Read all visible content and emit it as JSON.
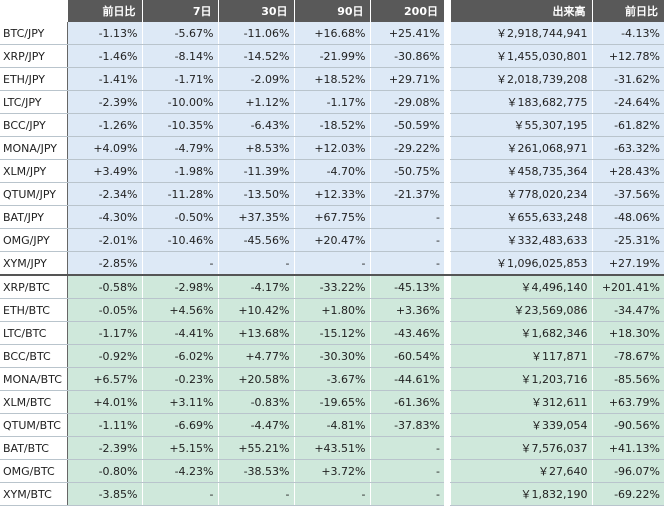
{
  "table": {
    "header": [
      "前日比",
      "7日",
      "30日",
      "90日",
      "200日",
      "出来高",
      "前日比"
    ],
    "rows": [
      [
        "BTC/JPY",
        "-1.13%",
        "-5.67%",
        "-11.06%",
        "+16.68%",
        "+25.41%",
        "￥2,918,744,941",
        "-4.13%"
      ],
      [
        "XRP/JPY",
        "-1.46%",
        "-8.14%",
        "-14.52%",
        "-21.99%",
        "-30.86%",
        "￥1,455,030,801",
        "+12.78%"
      ],
      [
        "ETH/JPY",
        "-1.41%",
        "-1.71%",
        "-2.09%",
        "+18.52%",
        "+29.71%",
        "￥2,018,739,208",
        "-31.62%"
      ],
      [
        "LTC/JPY",
        "-2.39%",
        "-10.00%",
        "+1.12%",
        "-1.17%",
        "-29.08%",
        "￥183,682,775",
        "-24.64%"
      ],
      [
        "BCC/JPY",
        "-1.26%",
        "-10.35%",
        "-6.43%",
        "-18.52%",
        "-50.59%",
        "￥55,307,195",
        "-61.82%"
      ],
      [
        "MONA/JPY",
        "+4.09%",
        "-4.79%",
        "+8.53%",
        "+12.03%",
        "-29.22%",
        "￥261,068,971",
        "-63.32%"
      ],
      [
        "XLM/JPY",
        "+3.49%",
        "-1.98%",
        "-11.39%",
        "-4.70%",
        "-50.75%",
        "￥458,735,364",
        "+28.43%"
      ],
      [
        "QTUM/JPY",
        "-2.34%",
        "-11.28%",
        "-13.50%",
        "+12.33%",
        "-21.37%",
        "￥778,020,234",
        "-37.56%"
      ],
      [
        "BAT/JPY",
        "-4.30%",
        "-0.50%",
        "+37.35%",
        "+67.75%",
        "-",
        "￥655,633,248",
        "-48.06%"
      ],
      [
        "OMG/JPY",
        "-2.01%",
        "-10.46%",
        "-45.56%",
        "+20.47%",
        "-",
        "￥332,483,633",
        "-25.31%"
      ],
      [
        "XYM/JPY",
        "-2.85%",
        "-",
        "-",
        "-",
        "-",
        "￥1,096,025,853",
        "+27.19%"
      ],
      [
        "XRP/BTC",
        "-0.58%",
        "-2.98%",
        "-4.17%",
        "-33.22%",
        "-45.13%",
        "￥4,496,140",
        "+201.41%"
      ],
      [
        "ETH/BTC",
        "-0.05%",
        "+4.56%",
        "+10.42%",
        "+1.80%",
        "+3.36%",
        "￥23,569,086",
        "-34.47%"
      ],
      [
        "LTC/BTC",
        "-1.17%",
        "-4.41%",
        "+13.68%",
        "-15.12%",
        "-43.46%",
        "￥1,682,346",
        "+18.30%"
      ],
      [
        "BCC/BTC",
        "-0.92%",
        "-6.02%",
        "+4.77%",
        "-30.30%",
        "-60.54%",
        "￥117,871",
        "-78.67%"
      ],
      [
        "MONA/BTC",
        "+6.57%",
        "-0.23%",
        "+20.58%",
        "-3.67%",
        "-44.61%",
        "￥1,203,716",
        "-85.56%"
      ],
      [
        "XLM/BTC",
        "+4.01%",
        "+3.11%",
        "-0.83%",
        "-19.65%",
        "-61.36%",
        "￥312,611",
        "+63.79%"
      ],
      [
        "QTUM/BTC",
        "-1.11%",
        "-6.69%",
        "-4.47%",
        "-4.81%",
        "-37.83%",
        "￥339,054",
        "-90.56%"
      ],
      [
        "BAT/BTC",
        "-2.39%",
        "+5.15%",
        "+55.21%",
        "+43.51%",
        "-",
        "￥7,576,037",
        "+41.13%"
      ],
      [
        "OMG/BTC",
        "-0.80%",
        "-4.23%",
        "-38.53%",
        "+3.72%",
        "-",
        "￥27,640",
        "-96.07%"
      ],
      [
        "XYM/BTC",
        "-3.85%",
        "-",
        "-",
        "-",
        "-",
        "￥1,832,190",
        "-69.22%"
      ]
    ]
  }
}
